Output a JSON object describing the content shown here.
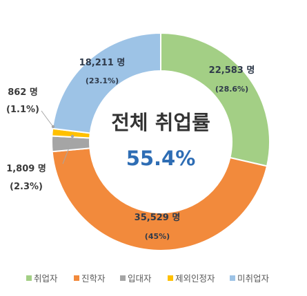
{
  "chart_data": {
    "type": "pie",
    "variant": "donut",
    "center_title": "전체 취업률",
    "center_value": "55.4%",
    "legend_placement": "bottom",
    "slices": [
      {
        "name": "취업자",
        "value": 22583,
        "count_label": "22,583 명",
        "percent_label": "(28.6%)",
        "color": "#a3cf85"
      },
      {
        "name": "진학자",
        "value": 35529,
        "count_label": "35,529 명",
        "percent_label": "(45%)",
        "color": "#f28a3c"
      },
      {
        "name": "입대자",
        "value": 1809,
        "count_label": "1,809 명",
        "percent_label": "(2.3%)",
        "color": "#a5a5a5"
      },
      {
        "name": "제외인정자",
        "value": 862,
        "count_label": "862 명",
        "percent_label": "(1.1%)",
        "color": "#ffc000"
      },
      {
        "name": "미취업자",
        "value": 18211,
        "count_label": "18,211 명",
        "percent_label": "(23.1%)",
        "color": "#9dc3e6"
      }
    ]
  }
}
